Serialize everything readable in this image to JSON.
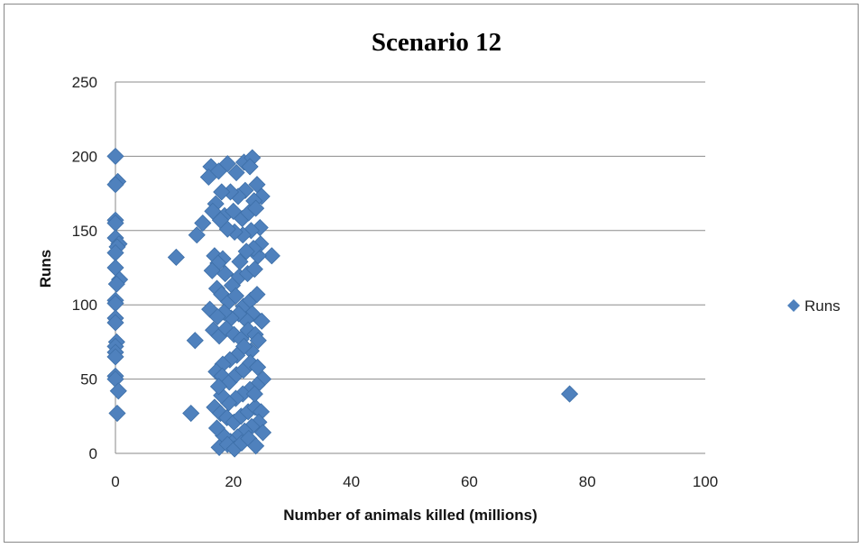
{
  "chart_data": {
    "type": "scatter",
    "title": "Scenario 12",
    "xlabel": "Number of animals killed (millions)",
    "ylabel": "Runs",
    "xlim": [
      0,
      100
    ],
    "ylim": [
      0,
      250
    ],
    "xticks": [
      "0",
      "20",
      "40",
      "60",
      "80",
      "100"
    ],
    "yticks": [
      "0",
      "50",
      "100",
      "150",
      "200",
      "250"
    ],
    "grid": "horizontal",
    "legend_position": "right",
    "marker": "diamond",
    "colors": {
      "series": "#4F81BD"
    },
    "series": [
      {
        "name": "Runs",
        "points": [
          [
            0,
            200
          ],
          [
            0.4,
            183
          ],
          [
            0,
            181
          ],
          [
            0,
            157
          ],
          [
            0,
            155
          ],
          [
            0,
            145
          ],
          [
            0.6,
            141
          ],
          [
            0.3,
            139
          ],
          [
            0,
            135
          ],
          [
            0,
            125
          ],
          [
            0.7,
            117
          ],
          [
            0.2,
            114
          ],
          [
            0,
            103
          ],
          [
            0,
            101
          ],
          [
            0,
            91
          ],
          [
            0,
            88
          ],
          [
            0.2,
            75
          ],
          [
            0,
            72
          ],
          [
            0,
            68
          ],
          [
            0,
            65
          ],
          [
            0,
            52
          ],
          [
            0,
            50
          ],
          [
            0.5,
            42
          ],
          [
            0.3,
            27
          ],
          [
            77,
            40
          ],
          [
            10.3,
            132
          ],
          [
            13.8,
            147
          ],
          [
            14.8,
            155
          ],
          [
            13.5,
            76
          ],
          [
            12.8,
            27
          ],
          [
            26.5,
            133
          ],
          [
            16.2,
            193
          ],
          [
            15.8,
            186
          ],
          [
            17.5,
            190
          ],
          [
            19,
            195
          ],
          [
            20.5,
            189
          ],
          [
            21.8,
            196
          ],
          [
            23.2,
            199
          ],
          [
            22.8,
            193
          ],
          [
            24,
            181
          ],
          [
            24.8,
            173
          ],
          [
            23.5,
            170
          ],
          [
            22,
            177
          ],
          [
            20.8,
            173
          ],
          [
            19.5,
            176
          ],
          [
            18,
            176
          ],
          [
            17,
            168
          ],
          [
            16.5,
            163
          ],
          [
            18.5,
            160
          ],
          [
            20,
            163
          ],
          [
            21.5,
            158
          ],
          [
            22.6,
            162
          ],
          [
            23.8,
            165
          ],
          [
            24.5,
            152
          ],
          [
            23,
            150
          ],
          [
            21.6,
            147
          ],
          [
            20.2,
            149
          ],
          [
            19,
            151
          ],
          [
            17.8,
            157
          ],
          [
            16.8,
            133
          ],
          [
            18.2,
            131
          ],
          [
            17.4,
            128
          ],
          [
            16.4,
            123
          ],
          [
            18.6,
            121
          ],
          [
            19.8,
            113
          ],
          [
            21,
            119
          ],
          [
            22.4,
            121
          ],
          [
            23.6,
            124
          ],
          [
            24.2,
            133
          ],
          [
            24.6,
            141
          ],
          [
            23.4,
            138
          ],
          [
            22.2,
            136
          ],
          [
            21.1,
            129
          ],
          [
            17.2,
            111
          ],
          [
            18,
            107
          ],
          [
            19.2,
            102
          ],
          [
            20.4,
            106
          ],
          [
            21.7,
            99
          ],
          [
            22.9,
            103
          ],
          [
            24,
            107
          ],
          [
            23.2,
            94
          ],
          [
            22.1,
            90
          ],
          [
            20.9,
            94
          ],
          [
            19.6,
            91
          ],
          [
            18.4,
            95
          ],
          [
            16,
            97
          ],
          [
            17.3,
            92
          ],
          [
            16.6,
            83
          ],
          [
            17.6,
            79
          ],
          [
            18.8,
            84
          ],
          [
            20.1,
            80
          ],
          [
            21.3,
            77
          ],
          [
            22.5,
            83
          ],
          [
            23.7,
            80
          ],
          [
            24.8,
            89
          ],
          [
            24.2,
            76
          ],
          [
            23,
            69
          ],
          [
            21.8,
            72
          ],
          [
            20.6,
            66
          ],
          [
            19.4,
            63
          ],
          [
            18.2,
            60
          ],
          [
            17.1,
            55
          ],
          [
            18.1,
            52
          ],
          [
            19.3,
            48
          ],
          [
            20.5,
            53
          ],
          [
            21.7,
            56
          ],
          [
            22.9,
            61
          ],
          [
            24.1,
            58
          ],
          [
            25,
            50
          ],
          [
            24,
            46
          ],
          [
            22.8,
            43
          ],
          [
            21.6,
            40
          ],
          [
            20.4,
            37
          ],
          [
            19.2,
            34
          ],
          [
            18,
            39
          ],
          [
            17.5,
            45
          ],
          [
            16.8,
            31
          ],
          [
            17.8,
            27
          ],
          [
            18.9,
            24
          ],
          [
            20.1,
            21
          ],
          [
            21.3,
            25
          ],
          [
            22.5,
            28
          ],
          [
            23.7,
            31
          ],
          [
            24.7,
            28
          ],
          [
            24.3,
            21
          ],
          [
            23.1,
            18
          ],
          [
            21.9,
            15
          ],
          [
            20.7,
            11
          ],
          [
            19.5,
            8
          ],
          [
            18.3,
            12
          ],
          [
            17.2,
            17
          ],
          [
            17.6,
            4
          ],
          [
            19,
            6
          ],
          [
            20.2,
            3
          ],
          [
            21.4,
            7
          ],
          [
            22.6,
            10
          ],
          [
            23.8,
            5
          ],
          [
            25,
            14
          ],
          [
            23.6,
            40
          ]
        ]
      }
    ]
  }
}
